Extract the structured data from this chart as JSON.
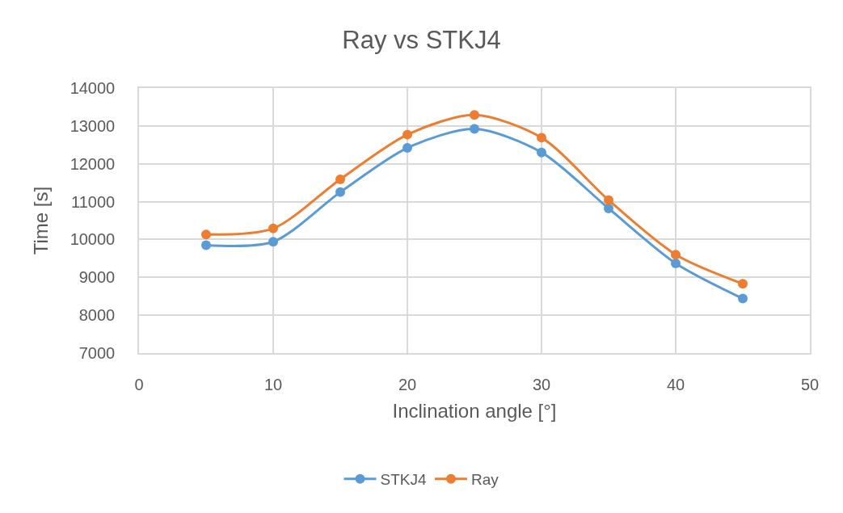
{
  "chart_data": {
    "type": "line",
    "title": "Ray vs STKJ4",
    "xlabel": "Inclination angle [°]",
    "ylabel": "Time [s]",
    "x": [
      5,
      10,
      15,
      20,
      25,
      30,
      35,
      40,
      45
    ],
    "series": [
      {
        "name": "STKJ4",
        "color": "#5b9bd5",
        "values": [
          9850,
          9940,
          11250,
          12420,
          12920,
          12300,
          10820,
          9370,
          8440
        ]
      },
      {
        "name": "Ray",
        "color": "#ed7d31",
        "values": [
          10130,
          10290,
          11590,
          12770,
          13290,
          12690,
          11040,
          9600,
          8830
        ]
      }
    ],
    "xlim": [
      0,
      50
    ],
    "xticks": [
      0,
      10,
      20,
      30,
      40,
      50
    ],
    "ylim": [
      7000,
      14000
    ],
    "yticks": [
      7000,
      8000,
      9000,
      10000,
      11000,
      12000,
      13000,
      14000
    ],
    "grid": true,
    "legend": "bottom",
    "marker": "circle",
    "line_style": "solid"
  }
}
